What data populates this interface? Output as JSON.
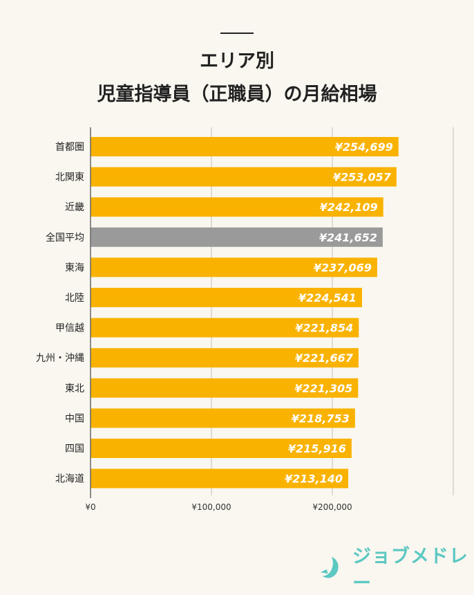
{
  "chart_data": {
    "type": "bar",
    "orientation": "horizontal",
    "title_line1": "エリア別",
    "title_line2": "児童指導員（正職員）の月給相場",
    "categories": [
      "首都圏",
      "北関東",
      "近畿",
      "全国平均",
      "東海",
      "北陸",
      "甲信越",
      "九州・沖縄",
      "東北",
      "中国",
      "四国",
      "北海道"
    ],
    "values": [
      254699,
      253057,
      242109,
      241652,
      237069,
      224541,
      221854,
      221667,
      221305,
      218753,
      215916,
      213140
    ],
    "value_labels": [
      "¥254,699",
      "¥253,057",
      "¥242,109",
      "¥241,652",
      "¥237,069",
      "¥224,541",
      "¥221,854",
      "¥221,667",
      "¥221,305",
      "¥218,753",
      "¥215,916",
      "¥213,140"
    ],
    "highlight_category": "全国平均",
    "xlim": [
      0,
      300000
    ],
    "x_ticks": [
      0,
      100000,
      200000,
      300000
    ],
    "x_tick_labels": [
      "¥0",
      "¥100,000",
      "¥200,000",
      ""
    ],
    "grid": true,
    "colors": {
      "bar": "#f9b200",
      "highlight": "#9a9a9a",
      "grid": "#d6d2ca",
      "label": "#ffffff"
    }
  },
  "brand": {
    "name": "ジョブメドレー",
    "color": "#5cc8c2"
  }
}
